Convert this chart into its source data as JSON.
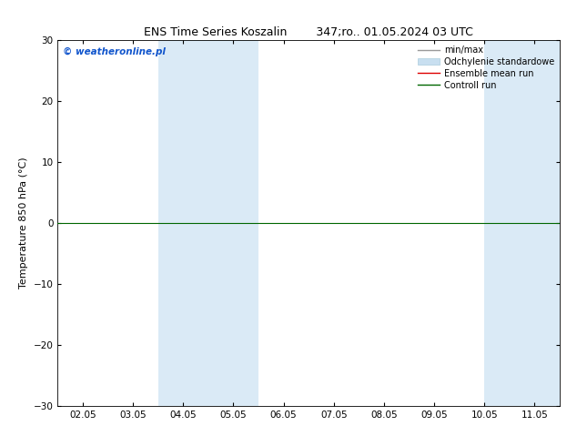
{
  "title": "ENS Time Series Koszalin        347;ro.. 01.05.2024 03 UTC",
  "ylabel": "Temperature 850 hPa (°C)",
  "ylim": [
    -30,
    30
  ],
  "yticks": [
    -30,
    -20,
    -10,
    0,
    10,
    20,
    30
  ],
  "xtick_labels": [
    "02.05",
    "03.05",
    "04.05",
    "05.05",
    "06.05",
    "07.05",
    "08.05",
    "09.05",
    "10.05",
    "11.05"
  ],
  "xtick_positions": [
    1,
    2,
    3,
    4,
    5,
    6,
    7,
    8,
    9,
    10
  ],
  "xlim": [
    0.5,
    10.5
  ],
  "shaded_bands": [
    [
      2.5,
      3.5
    ],
    [
      3.5,
      4.5
    ],
    [
      9.0,
      9.7
    ],
    [
      9.7,
      10.5
    ]
  ],
  "shaded_color": "#daeaf6",
  "zero_line_color": "#006600",
  "background_color": "#ffffff",
  "legend_entries": [
    {
      "label": "min/max",
      "color": "#999999",
      "lw": 1.0
    },
    {
      "label": "Odchylenie standardowe",
      "color": "#c8dff0",
      "lw": 5
    },
    {
      "label": "Ensemble mean run",
      "color": "#dd0000",
      "lw": 1.0
    },
    {
      "label": "Controll run",
      "color": "#006600",
      "lw": 1.0
    }
  ],
  "watermark": "© weatheronline.pl",
  "title_fontsize": 9,
  "label_fontsize": 8,
  "tick_fontsize": 7.5,
  "legend_fontsize": 7
}
